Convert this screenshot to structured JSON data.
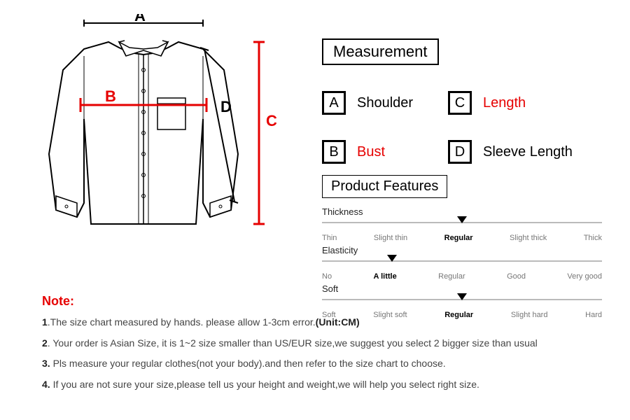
{
  "diagram": {
    "labels": {
      "A": "A",
      "B": "B",
      "C": "C",
      "D": "D"
    },
    "stroke": "#000000",
    "red": "#e60000",
    "fill": "#ffffff"
  },
  "measurement": {
    "heading": "Measurement",
    "items": [
      {
        "letter": "A",
        "label": "Shoulder",
        "color": "#000000"
      },
      {
        "letter": "C",
        "label": "Length",
        "color": "#e60000"
      },
      {
        "letter": "B",
        "label": "Bust",
        "color": "#e60000"
      },
      {
        "letter": "D",
        "label": "Sleeve Length",
        "color": "#000000"
      }
    ]
  },
  "productFeatures": {
    "heading": "Product Features",
    "rows": [
      {
        "title": "Thickness",
        "options": [
          "Thin",
          "Slight thin",
          "Regular",
          "Slight thick",
          "Thick"
        ],
        "selected_index": 2
      },
      {
        "title": "Elasticity",
        "options": [
          "No",
          "A little",
          "Regular",
          "Good",
          "Very good"
        ],
        "selected_index": 1
      },
      {
        "title": "Soft",
        "options": [
          "Soft",
          "Slight soft",
          "Regular",
          "Slight hard",
          "Hard"
        ],
        "selected_index": 2
      }
    ]
  },
  "notes": {
    "heading": "Note:",
    "lines": [
      {
        "num": "1",
        "text": ".The size chart measured by hands.  please allow 1-3cm error.",
        "bold": "(Unit:CM)"
      },
      {
        "num": "2",
        "text": ". Your order is Asian Size, it is 1~2 size smaller than US/EUR size,we suggest you select 2 bigger size than usual",
        "bold": ""
      },
      {
        "num": "3.",
        "text": " Pls measure your regular clothes(not your body).and then refer to the size chart to choose.",
        "bold": ""
      },
      {
        "num": "4.",
        "text": " If you are not sure your size,please tell us your height and weight,we will help you select right size.",
        "bold": ""
      }
    ]
  }
}
